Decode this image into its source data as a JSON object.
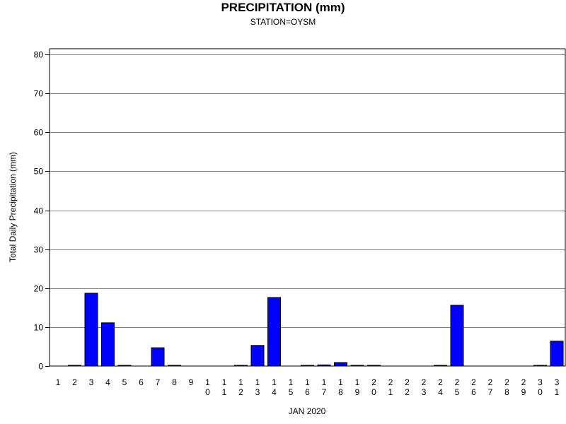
{
  "chart_data": {
    "type": "bar",
    "title": "PRECIPITATION (mm)",
    "subtitle": "STATION=OYSM",
    "xlabel": "JAN 2020",
    "ylabel": "Total Daily Precipitation (mm)",
    "ylim": [
      0,
      80
    ],
    "yticks": [
      0,
      10,
      20,
      30,
      40,
      50,
      60,
      70,
      80
    ],
    "grid": true,
    "categories": [
      "1",
      "2",
      "3",
      "4",
      "5",
      "6",
      "7",
      "8",
      "9",
      "10",
      "11",
      "12",
      "13",
      "14",
      "15",
      "16",
      "17",
      "18",
      "19",
      "20",
      "21",
      "22",
      "23",
      "24",
      "25",
      "26",
      "27",
      "28",
      "29",
      "30",
      "31"
    ],
    "values": [
      null,
      0.1,
      18.7,
      11.1,
      0.1,
      null,
      4.7,
      0.1,
      null,
      null,
      null,
      0.1,
      5.3,
      17.6,
      null,
      0.1,
      0.3,
      0.9,
      0.1,
      0.1,
      null,
      null,
      null,
      0.1,
      15.6,
      null,
      null,
      null,
      null,
      0.1,
      6.4
    ],
    "bar_color": "#0000ff"
  }
}
